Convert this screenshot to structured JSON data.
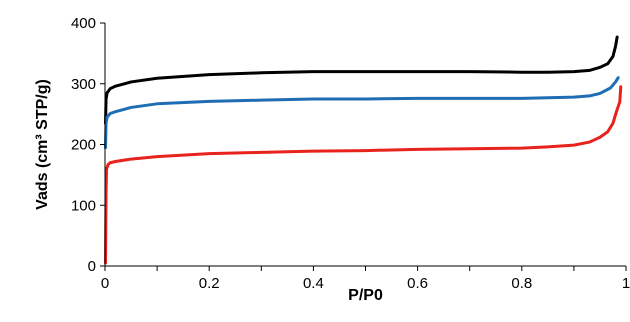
{
  "chart_data": {
    "type": "line",
    "xlabel": "P/P0",
    "ylabel": "Vads (cm³ STP/g)",
    "xlim": [
      0,
      1
    ],
    "ylim": [
      0,
      400
    ],
    "x_ticks": [
      "0",
      "0.2",
      "0.4",
      "0.6",
      "0.8",
      "1"
    ],
    "y_ticks": [
      "0",
      "100",
      "200",
      "300",
      "400"
    ],
    "x_tick_values": [
      0,
      0.2,
      0.4,
      0.6,
      0.8,
      1
    ],
    "y_tick_values": [
      0,
      100,
      200,
      300,
      400
    ],
    "x_minor_step": 0.1,
    "grid": false,
    "legend": false,
    "series": [
      {
        "color": "#000000",
        "points": [
          [
            0.001,
            235
          ],
          [
            0.002,
            275
          ],
          [
            0.004,
            285
          ],
          [
            0.01,
            292
          ],
          [
            0.02,
            296
          ],
          [
            0.05,
            303
          ],
          [
            0.1,
            309
          ],
          [
            0.2,
            315
          ],
          [
            0.3,
            318
          ],
          [
            0.4,
            320
          ],
          [
            0.5,
            320
          ],
          [
            0.6,
            320
          ],
          [
            0.7,
            320
          ],
          [
            0.8,
            319
          ],
          [
            0.85,
            319
          ],
          [
            0.9,
            320
          ],
          [
            0.93,
            322
          ],
          [
            0.95,
            327
          ],
          [
            0.965,
            333
          ],
          [
            0.975,
            345
          ],
          [
            0.98,
            362
          ],
          [
            0.983,
            377
          ]
        ]
      },
      {
        "color": "#1F6EB4",
        "points": [
          [
            0.001,
            195
          ],
          [
            0.002,
            235
          ],
          [
            0.004,
            245
          ],
          [
            0.01,
            251
          ],
          [
            0.02,
            254
          ],
          [
            0.05,
            261
          ],
          [
            0.1,
            267
          ],
          [
            0.2,
            271
          ],
          [
            0.3,
            273
          ],
          [
            0.4,
            275
          ],
          [
            0.5,
            275
          ],
          [
            0.6,
            276
          ],
          [
            0.7,
            276
          ],
          [
            0.8,
            276
          ],
          [
            0.9,
            278
          ],
          [
            0.93,
            280
          ],
          [
            0.95,
            284
          ],
          [
            0.97,
            293
          ],
          [
            0.98,
            303
          ],
          [
            0.985,
            310
          ]
        ]
      },
      {
        "color": "#E8221C",
        "points": [
          [
            0.001,
            5
          ],
          [
            0.002,
            120
          ],
          [
            0.003,
            160
          ],
          [
            0.006,
            167
          ],
          [
            0.01,
            170
          ],
          [
            0.02,
            172
          ],
          [
            0.05,
            176
          ],
          [
            0.1,
            180
          ],
          [
            0.2,
            185
          ],
          [
            0.3,
            187
          ],
          [
            0.4,
            189
          ],
          [
            0.5,
            190
          ],
          [
            0.6,
            192
          ],
          [
            0.7,
            193
          ],
          [
            0.8,
            194
          ],
          [
            0.85,
            196
          ],
          [
            0.9,
            199
          ],
          [
            0.93,
            204
          ],
          [
            0.95,
            212
          ],
          [
            0.965,
            221
          ],
          [
            0.975,
            235
          ],
          [
            0.982,
            255
          ],
          [
            0.988,
            270
          ],
          [
            0.99,
            295
          ]
        ]
      }
    ]
  }
}
